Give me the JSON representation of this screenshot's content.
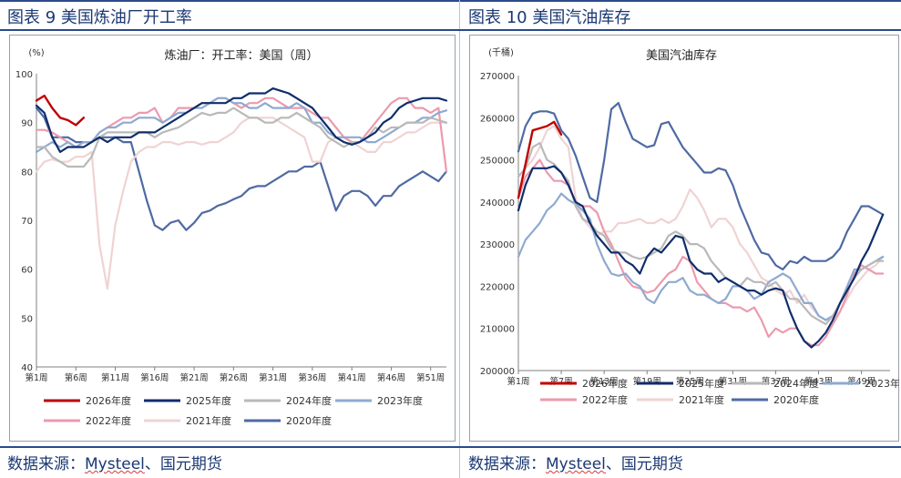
{
  "left": {
    "header": "图表 9 美国炼油厂开工率",
    "source_label": "数据来源：",
    "source_brand": "Mysteel",
    "source_rest": "、国元期货",
    "chart": {
      "type": "line",
      "title": "炼油厂：开工率：美国（周）",
      "unit": "(%)",
      "ylim": [
        40,
        100
      ],
      "yticks": [
        40,
        50,
        60,
        70,
        80,
        90,
        100
      ],
      "xlim": [
        1,
        53
      ],
      "xticks": [
        1,
        6,
        11,
        16,
        21,
        26,
        31,
        36,
        41,
        46,
        51
      ],
      "xtick_labels": [
        "第1周",
        "第6周",
        "第11周",
        "第16周",
        "第21周",
        "第26周",
        "第31周",
        "第36周",
        "第41周",
        "第46周",
        "第51周"
      ],
      "legend": [
        {
          "name": "2026年度",
          "color": "#c00000"
        },
        {
          "name": "2025年度",
          "color": "#0f2d6b"
        },
        {
          "name": "2024年度",
          "color": "#b9b9b9"
        },
        {
          "name": "2023年度",
          "color": "#8eaad0"
        },
        {
          "name": "2022年度",
          "color": "#ec9aae"
        },
        {
          "name": "2021年度",
          "color": "#f0d3d3"
        },
        {
          "name": "2020年度",
          "color": "#4e6aa3"
        }
      ],
      "series": [
        {
          "name": "2020年度",
          "color": "#4e6aa3",
          "x_start": 1,
          "values": [
            93,
            91,
            87,
            87,
            87,
            86,
            86,
            86,
            87,
            87,
            87,
            86,
            86,
            80,
            74,
            69,
            68,
            69.5,
            70,
            68,
            69.5,
            71.5,
            72,
            73,
            73.5,
            74.3,
            75,
            76.5,
            77,
            77,
            78,
            79,
            80,
            80,
            81,
            81,
            82,
            77,
            72,
            75,
            76,
            76,
            75,
            73,
            75,
            75,
            77,
            78,
            79,
            80,
            79,
            78,
            80
          ]
        },
        {
          "name": "2021年度",
          "color": "#f0d3d3",
          "x_start": 1,
          "values": [
            80,
            82,
            82.5,
            82,
            82,
            83,
            83,
            84,
            65,
            56,
            69,
            76,
            82,
            84,
            85,
            85,
            86,
            86,
            85.5,
            86,
            86,
            85.5,
            86,
            86,
            87,
            88,
            90,
            91,
            91,
            91,
            91,
            90,
            89,
            88,
            87,
            82,
            82,
            86,
            87,
            87,
            86,
            85,
            84,
            84,
            86,
            86,
            87,
            88,
            88,
            89,
            90,
            90,
            90
          ]
        },
        {
          "name": "2022年度",
          "color": "#ec9aae",
          "x_start": 1,
          "values": [
            88.5,
            88.5,
            88,
            87,
            86,
            85,
            86,
            86,
            88,
            89,
            90,
            91,
            91,
            92,
            92,
            93,
            90,
            91,
            93,
            93,
            93,
            94,
            94,
            95,
            95,
            94,
            93,
            94,
            94,
            95,
            95,
            94,
            93,
            93,
            93,
            92,
            91,
            91,
            89,
            87,
            86,
            86,
            88,
            90,
            92,
            94,
            95,
            95,
            93,
            93,
            92,
            93,
            80
          ]
        },
        {
          "name": "2023年度",
          "color": "#8eaad0",
          "x_start": 1,
          "values": [
            84,
            85,
            86,
            85,
            86,
            85,
            86,
            86,
            88,
            89,
            89,
            90,
            90,
            91,
            91,
            91,
            90,
            91,
            92,
            92,
            93,
            93,
            94,
            95,
            95,
            94,
            94,
            93,
            93,
            94,
            93,
            93,
            93,
            94,
            93,
            90,
            90,
            88,
            87,
            87,
            87,
            87,
            86,
            86,
            87,
            88,
            89,
            90,
            90,
            91,
            91,
            92,
            92.5
          ]
        },
        {
          "name": "2024年度",
          "color": "#b9b9b9",
          "x_start": 1,
          "values": [
            85,
            85,
            83,
            82,
            81,
            81,
            81,
            83,
            87,
            88,
            88,
            88,
            88,
            88,
            88,
            87,
            88,
            88.5,
            89,
            90,
            91,
            92,
            91.5,
            92,
            92,
            93,
            92,
            91,
            91,
            90,
            90,
            91,
            91,
            92,
            91,
            90,
            89,
            87,
            86,
            85,
            86,
            86,
            87,
            89,
            88,
            89,
            89,
            90,
            90,
            90,
            91,
            90.5,
            90
          ]
        },
        {
          "name": "2025年度",
          "color": "#0f2d6b",
          "x_start": 1,
          "values": [
            93.5,
            92,
            87,
            84,
            85,
            85,
            85,
            86,
            87,
            86,
            87,
            87,
            87,
            88,
            88,
            88,
            89,
            90,
            91,
            92,
            93,
            94,
            94,
            94,
            94,
            95,
            95,
            96,
            96,
            96,
            97,
            96.5,
            96,
            95,
            94,
            93,
            91,
            89,
            87,
            86,
            85.5,
            86,
            87,
            88,
            90,
            91,
            93,
            94,
            94.5,
            95,
            95,
            95,
            94.5
          ]
        },
        {
          "name": "2026年度",
          "color": "#c00000",
          "x_start": 1,
          "values": [
            94.5,
            95.5,
            93,
            91,
            90.5,
            89.5,
            91
          ]
        }
      ]
    }
  },
  "right": {
    "header": "图表 10 美国汽油库存",
    "source_label": "数据来源：",
    "source_brand": "Mysteel",
    "source_rest": "、国元期货",
    "chart": {
      "type": "line",
      "title": "美国汽油库存",
      "unit": "(千桶)",
      "ylim": [
        200000,
        270000
      ],
      "yticks": [
        200000,
        210000,
        220000,
        230000,
        240000,
        250000,
        260000,
        270000
      ],
      "xlim": [
        1,
        53
      ],
      "xticks": [
        1,
        7,
        13,
        19,
        25,
        31,
        37,
        43,
        49
      ],
      "xtick_labels": [
        "第1周",
        "第7周",
        "第13周",
        "第19周",
        "第25周",
        "第31周",
        "第37周",
        "第43周",
        "第49周"
      ],
      "legend": [
        {
          "name": "2026年度",
          "color": "#c00000"
        },
        {
          "name": "2025年度",
          "color": "#0f2d6b"
        },
        {
          "name": "2024年度",
          "color": "#b9b9b9"
        },
        {
          "name": "2023年度",
          "color": "#8eaad0"
        },
        {
          "name": "2022年度",
          "color": "#ec9aae"
        },
        {
          "name": "2021年度",
          "color": "#f0d3d3"
        },
        {
          "name": "2020年度",
          "color": "#4e6aa3"
        }
      ],
      "series": [
        {
          "name": "2020年度",
          "color": "#4e6aa3",
          "x_start": 1,
          "values": [
            252000,
            258000,
            261000,
            261500,
            261500,
            261000,
            257000,
            255000,
            251000,
            246000,
            241000,
            240000,
            250000,
            262000,
            263500,
            259000,
            255000,
            254000,
            253000,
            253500,
            258500,
            259000,
            256000,
            253000,
            251000,
            249000,
            247000,
            247000,
            248000,
            247500,
            244000,
            239000,
            235000,
            231000,
            228000,
            227500,
            225000,
            224000,
            226000,
            225500,
            227000,
            226000,
            226000,
            226000,
            227000,
            229000,
            233000,
            236000,
            239000,
            239000,
            238000,
            237000
          ]
        },
        {
          "name": "2021年度",
          "color": "#f0d3d3",
          "x_start": 1,
          "values": [
            246000,
            248000,
            250000,
            253000,
            257000,
            258000,
            255000,
            253000,
            241000,
            236000,
            234000,
            232000,
            233000,
            233000,
            235000,
            235000,
            235500,
            236000,
            235000,
            235000,
            236000,
            235000,
            236000,
            239000,
            243000,
            241000,
            238000,
            234000,
            236000,
            236000,
            234000,
            230000,
            228000,
            225000,
            222000,
            221000,
            219000,
            218000,
            219000,
            216000,
            218000,
            215000,
            213000,
            212000,
            212500,
            214000,
            217000,
            220000,
            222000,
            224000,
            225000,
            227000
          ]
        },
        {
          "name": "2022年度",
          "color": "#ec9aae",
          "x_start": 1,
          "values": [
            241000,
            246000,
            248000,
            250000,
            247000,
            245000,
            245000,
            244000,
            240000,
            239000,
            239000,
            237500,
            233000,
            230000,
            226000,
            222000,
            220000,
            219500,
            218500,
            219000,
            221000,
            223000,
            224000,
            227000,
            226000,
            221000,
            219000,
            217000,
            216000,
            216000,
            215000,
            215000,
            214000,
            215000,
            212000,
            208000,
            210000,
            209000,
            210000,
            210000,
            207000,
            206000,
            206000,
            208000,
            211000,
            214000,
            218000,
            223000,
            225000,
            224000,
            223000,
            223000
          ]
        },
        {
          "name": "2023年度",
          "color": "#8eaad0",
          "x_start": 1,
          "values": [
            227000,
            231000,
            233000,
            235000,
            238000,
            239500,
            242000,
            240500,
            239500,
            238000,
            236000,
            230000,
            226000,
            223000,
            222500,
            223000,
            221000,
            220000,
            217000,
            216000,
            219000,
            221000,
            221000,
            222000,
            219000,
            218000,
            218000,
            217000,
            216000,
            217000,
            220000,
            220000,
            219000,
            217000,
            218000,
            221000,
            222000,
            223000,
            222000,
            219000,
            216000,
            216000,
            213000,
            212000,
            213000,
            216000,
            220000,
            224000,
            224000,
            225000,
            226000,
            227000
          ]
        },
        {
          "name": "2024年度",
          "color": "#b9b9b9",
          "x_start": 1,
          "values": [
            246000,
            248000,
            253000,
            254000,
            250000,
            249000,
            247000,
            245000,
            239000,
            236000,
            235000,
            233000,
            232000,
            229000,
            228000,
            228000,
            227000,
            226500,
            227000,
            228000,
            229000,
            232000,
            233000,
            232000,
            230000,
            230000,
            229000,
            226000,
            224000,
            222000,
            221000,
            220000,
            222000,
            221000,
            221000,
            220000,
            221000,
            219000,
            217000,
            217000,
            215000,
            213000,
            212000,
            211000,
            213000,
            216000,
            219000,
            222000,
            224000,
            225000,
            226000,
            226000
          ]
        },
        {
          "name": "2025年度",
          "color": "#0f2d6b",
          "x_start": 1,
          "values": [
            238000,
            244000,
            248000,
            248000,
            248000,
            248500,
            247000,
            244000,
            240000,
            239000,
            235000,
            232000,
            230000,
            228000,
            228000,
            226000,
            225000,
            223000,
            227000,
            229000,
            228000,
            230000,
            232000,
            231500,
            226000,
            224000,
            223000,
            223000,
            221000,
            222000,
            221000,
            220000,
            219000,
            219000,
            218000,
            219000,
            219500,
            219000,
            214000,
            210000,
            207000,
            205500,
            207000,
            209000,
            212000,
            216000,
            219000,
            222000,
            226000,
            229000,
            233000,
            237000
          ]
        },
        {
          "name": "2026年度",
          "color": "#c00000",
          "x_start": 1,
          "values": [
            241000,
            249000,
            257000,
            257500,
            258000,
            259000,
            256000
          ]
        }
      ]
    }
  }
}
